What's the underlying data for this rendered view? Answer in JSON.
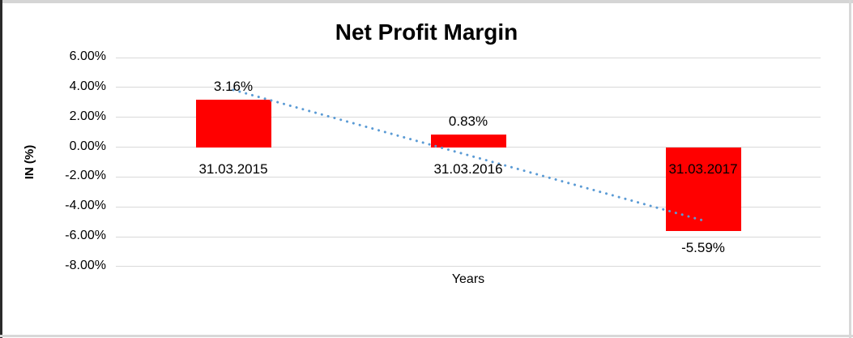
{
  "chart_data": {
    "type": "bar",
    "title": "Net Profit Margin",
    "xlabel": "Years",
    "ylabel": "IN (%)",
    "categories": [
      "31.03.2015",
      "31.03.2016",
      "31.03.2017"
    ],
    "values": [
      3.16,
      0.83,
      -5.59
    ],
    "data_labels": [
      "3.16%",
      "0.83%",
      "-5.59%"
    ],
    "ylim": [
      -8,
      6
    ],
    "y_tick_step": 2,
    "y_tick_labels": [
      "6.00%",
      "4.00%",
      "2.00%",
      "0.00%",
      "-2.00%",
      "-4.00%",
      "-6.00%",
      "-8.00%"
    ],
    "grid": true,
    "legend": "none",
    "bar_color": "#ff0000",
    "gridline_color": "#d9d9d9",
    "trendline": {
      "type": "linear",
      "style": "dotted",
      "color": "#5b9bd5",
      "start_value": 3.84,
      "end_value": -4.91
    }
  }
}
